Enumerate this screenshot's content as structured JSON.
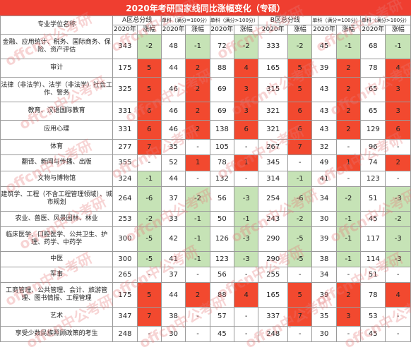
{
  "title": "2020年考研国家线同比涨幅变化（专硕）",
  "headers": {
    "name": "专业学位名称",
    "a_total": "A区总分线",
    "b_total": "B区总分线",
    "single_sub": "单科（满分=100分）",
    "single_sub_150": "单科（满分>100分）",
    "single_full": "单科（满分=100分）",
    "single_full_150": "单科（满分>100分）",
    "year": "2020年",
    "change": "涨幅"
  },
  "rows": [
    {
      "name": "金融、应用统计、税务、国际商务、保险、资产评估",
      "a": [
        "343",
        "-2",
        "48",
        "-1",
        "72",
        "-2"
      ],
      "b": [
        "333",
        "-2",
        "45",
        "-1",
        "68",
        "-1"
      ]
    },
    {
      "name": "审计",
      "a": [
        "175",
        "5",
        "44",
        "2",
        "88",
        "4"
      ],
      "b": [
        "165",
        "5",
        "39",
        "2",
        "78",
        "4"
      ]
    },
    {
      "name": "法律（非法学）、法学（非法学）社会工作、警务",
      "a": [
        "325",
        "5",
        "46",
        "2",
        "69",
        "3"
      ],
      "b": [
        "315",
        "5",
        "43",
        "2",
        "65",
        "3"
      ]
    },
    {
      "name": "教育、汉语国际教育",
      "a": [
        "331",
        "6",
        "46",
        "2",
        "69",
        "3"
      ],
      "b": [
        "321",
        "6",
        "43",
        "2",
        "65",
        "3"
      ]
    },
    {
      "name": "应用心理",
      "a": [
        "331",
        "6",
        "46",
        "2",
        "138",
        "6"
      ],
      "b": [
        "321",
        "6",
        "43",
        "2",
        "129",
        "6"
      ]
    },
    {
      "name": "体育",
      "a": [
        "277",
        "7",
        "35",
        "-",
        "105",
        "-"
      ],
      "b": [
        "267",
        "7",
        "32",
        "-",
        "96",
        "-"
      ]
    },
    {
      "name": "翻译、新闻与传播、出版",
      "a": [
        "355",
        "-",
        "52",
        "1",
        "78",
        "1"
      ],
      "b": [
        "345",
        "-",
        "49",
        "1",
        "74",
        "2"
      ]
    },
    {
      "name": "文物与博物馆",
      "a": [
        "324",
        "-1",
        "44",
        "-",
        "132",
        "-"
      ],
      "b": [
        "314",
        "-1",
        "41",
        "-",
        "123",
        "-"
      ]
    },
    {
      "name": "建筑学、工程（不含工程管理领域）、城市规划",
      "a": [
        "264",
        "-6",
        "37",
        "-2",
        "56",
        "-3"
      ],
      "b": [
        "254",
        "-6",
        "34",
        "-2",
        "51",
        "-3"
      ]
    },
    {
      "name": "农业、兽医、风景园林、林业",
      "a": [
        "253",
        "-2",
        "33",
        "-1",
        "50",
        "-1"
      ],
      "b": [
        "243",
        "-2",
        "30",
        "-1",
        "45",
        "-2"
      ]
    },
    {
      "name": "临床医学、口腔医学、公共卫生、护理、药学、中药学",
      "a": [
        "300",
        "-5",
        "42",
        "-1",
        "126",
        "-3"
      ],
      "b": [
        "290",
        "-5",
        "39",
        "-1",
        "117",
        "-3"
      ]
    },
    {
      "name": "中医",
      "a": [
        "300",
        "-5",
        "41",
        "-1",
        "123",
        "-3"
      ],
      "b": [
        "290",
        "-5",
        "38",
        "-1",
        "114",
        "-3"
      ]
    },
    {
      "name": "军事",
      "a": [
        "265",
        "-",
        "37",
        "-",
        "56",
        "-"
      ],
      "b": [
        "255",
        "-",
        "34",
        "-",
        "51",
        "-"
      ]
    },
    {
      "name": "工商管理、公共管理、会计、旅游管理、图书情报、工程管理",
      "a": [
        "175",
        "5",
        "44",
        "2",
        "88",
        "4"
      ],
      "b": [
        "165",
        "5",
        "39",
        "2",
        "78",
        "4"
      ]
    },
    {
      "name": "艺术",
      "a": [
        "347",
        "7",
        "38",
        "-",
        "57",
        "-"
      ],
      "b": [
        "337",
        "7",
        "35",
        "3",
        "53",
        "-"
      ]
    },
    {
      "name": "享受少数民族照顾政策的考生",
      "a": [
        "248",
        "-",
        "30",
        "-",
        "45",
        "-"
      ],
      "b": [
        "248",
        "-",
        "30",
        "-",
        "45",
        "-"
      ]
    }
  ],
  "colors": {
    "up": "#f2492f",
    "down": "#c6e3b6",
    "title": "#ef3e30"
  },
  "watermark": {
    "text": "offcn中公考研"
  }
}
